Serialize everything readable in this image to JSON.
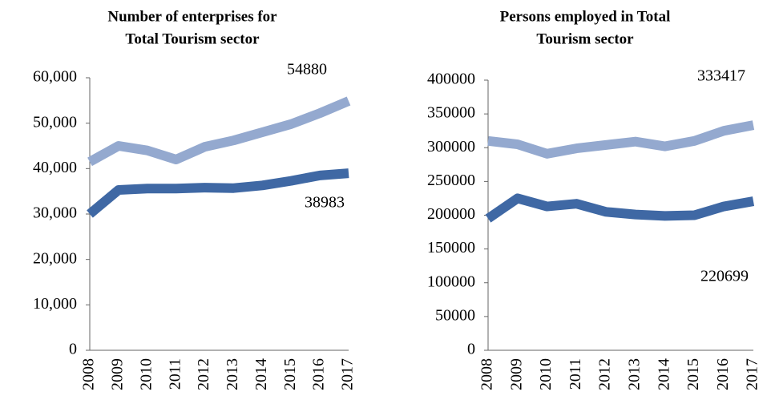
{
  "chart_data": [
    {
      "type": "line",
      "title": [
        "Number of enterprises for",
        "Total Tourism sector"
      ],
      "categories": [
        "2008",
        "2009",
        "2010",
        "2011",
        "2012",
        "2013",
        "2014",
        "2015",
        "2016",
        "2017"
      ],
      "series": [
        {
          "color": "#94a9cf",
          "values": [
            41500,
            45000,
            44000,
            42000,
            44800,
            46200,
            48000,
            49800,
            52200,
            54880
          ],
          "value_labels": [
            null,
            null,
            null,
            null,
            null,
            null,
            null,
            null,
            null,
            "54880"
          ]
        },
        {
          "color": "#3f68a4",
          "values": [
            30000,
            35300,
            35600,
            35600,
            35800,
            35700,
            36300,
            37300,
            38500,
            38983
          ],
          "value_labels": [
            null,
            null,
            null,
            null,
            null,
            null,
            null,
            null,
            null,
            "38983"
          ]
        }
      ],
      "ylim": [
        0,
        60000
      ],
      "yticks": [
        0,
        {
          "value": 10000,
          "label": "10,000"
        },
        {
          "value": 20000,
          "label": "20,000"
        },
        {
          "value": 30000,
          "label": "30,000"
        },
        {
          "value": 40000,
          "label": "40,000"
        },
        {
          "value": 50000,
          "label": "50,000"
        },
        {
          "value": 60000,
          "label": "60,000"
        }
      ],
      "grid": false
    },
    {
      "type": "line",
      "title": [
        "Persons employed in Total",
        "Tourism sector"
      ],
      "categories": [
        "2008",
        "2009",
        "2010",
        "2011",
        "2012",
        "2013",
        "2014",
        "2015",
        "2016",
        "2017"
      ],
      "series": [
        {
          "color": "#94a9cf",
          "values": [
            310000,
            305000,
            291000,
            299000,
            304000,
            309000,
            302000,
            310000,
            325000,
            333417
          ],
          "value_labels": [
            null,
            null,
            null,
            null,
            null,
            null,
            null,
            null,
            null,
            "333417"
          ]
        },
        {
          "color": "#3f68a4",
          "values": [
            195000,
            225000,
            213000,
            217000,
            205000,
            201000,
            199000,
            200000,
            213000,
            220699
          ],
          "value_labels": [
            null,
            null,
            null,
            null,
            null,
            null,
            null,
            null,
            null,
            "220699"
          ]
        }
      ],
      "ylim": [
        0,
        400000
      ],
      "yticks": [
        0,
        50000,
        100000,
        150000,
        200000,
        250000,
        300000,
        350000,
        400000
      ],
      "grid": false
    }
  ]
}
